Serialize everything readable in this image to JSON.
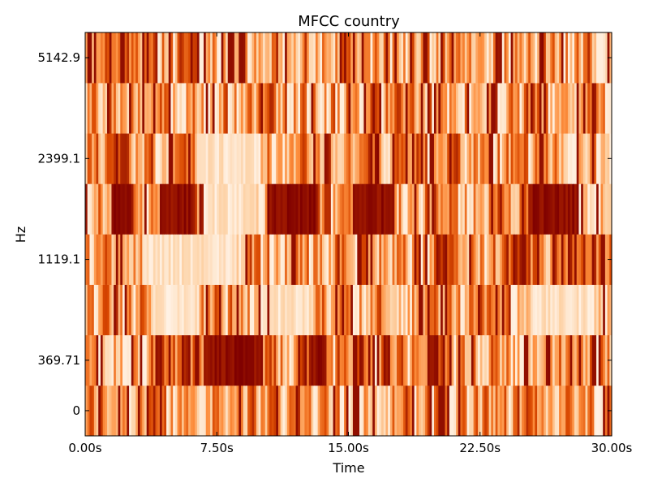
{
  "chart_data": {
    "type": "heatmap",
    "title": "MFCC country",
    "xlabel": "Time",
    "ylabel": "Hz",
    "x_range_seconds": [
      0,
      30
    ],
    "x_ticks": [
      "0.00s",
      "7.50s",
      "15.00s",
      "22.50s",
      "30.00s"
    ],
    "y_ticks": [
      "0",
      "369.71",
      "1119.1",
      "2399.1",
      "5142.9"
    ],
    "n_rows": 8,
    "n_frames": 240,
    "colormap": [
      "#fff5eb",
      "#fdd0a2",
      "#fd8d3c",
      "#d94801",
      "#7f0000"
    ],
    "dark_regions": [
      {
        "row": 4,
        "start_s": 1.6,
        "end_s": 2.7
      },
      {
        "row": 4,
        "start_s": 4.3,
        "end_s": 6.2
      },
      {
        "row": 4,
        "start_s": 10.4,
        "end_s": 13.2
      },
      {
        "row": 4,
        "start_s": 15.3,
        "end_s": 17.5
      },
      {
        "row": 4,
        "start_s": 25.3,
        "end_s": 28.1
      },
      {
        "row": 1,
        "start_s": 6.8,
        "end_s": 10.1
      },
      {
        "row": 1,
        "start_s": 12.8,
        "end_s": 13.8
      }
    ],
    "light_regions": [
      {
        "row": 3,
        "start_s": 3.2,
        "end_s": 8.5
      },
      {
        "row": 2,
        "start_s": 3.8,
        "end_s": 6.5
      },
      {
        "row": 2,
        "start_s": 10.5,
        "end_s": 13.0
      },
      {
        "row": 2,
        "start_s": 25.5,
        "end_s": 29.0
      },
      {
        "row": 5,
        "start_s": 6.4,
        "end_s": 10.0
      },
      {
        "row": 4,
        "start_s": 6.7,
        "end_s": 9.8
      }
    ]
  }
}
